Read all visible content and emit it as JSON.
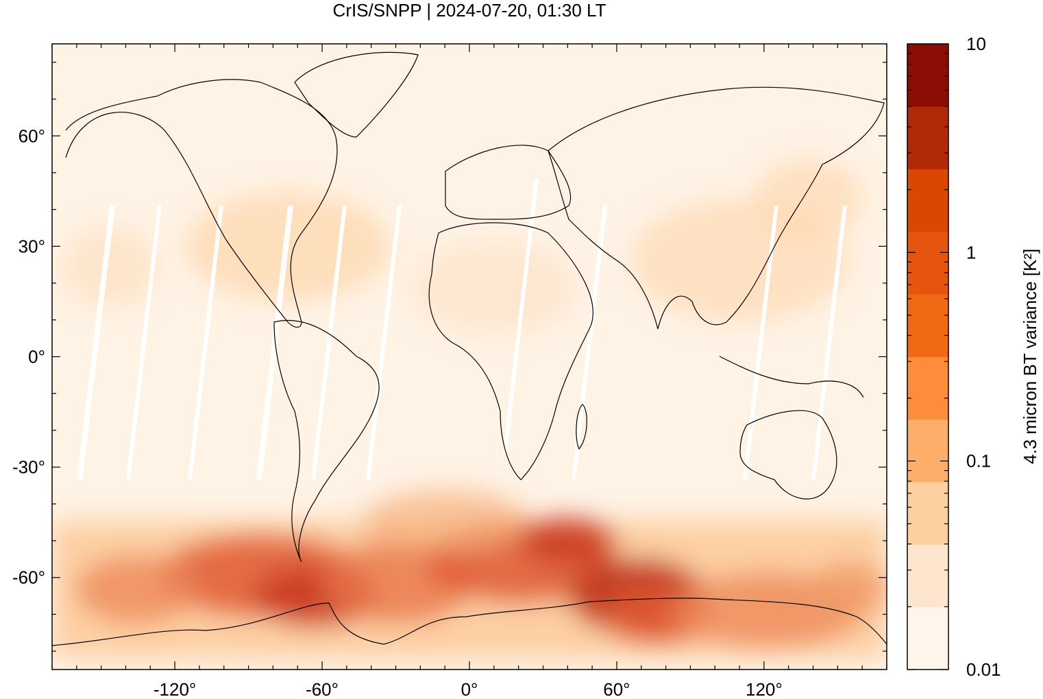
{
  "title": "CrIS/SNPP | 2024-07-20, 01:30 LT",
  "map": {
    "x_ticks": [
      "-120°",
      "-60°",
      "0°",
      "60°",
      "120°"
    ],
    "y_ticks": [
      "60°",
      "30°",
      "0°",
      "-30°",
      "-60°"
    ],
    "x_tick_values": [
      -120,
      -60,
      0,
      60,
      120
    ],
    "y_tick_values": [
      60,
      30,
      0,
      -30,
      -60
    ],
    "lon_range": [
      -170,
      170
    ],
    "lat_range": [
      -85,
      85
    ]
  },
  "colorbar": {
    "label": "4.3 micron BT variance [K²]",
    "tick_labels": [
      "10",
      "1",
      "0.1",
      "0.01"
    ],
    "tick_values": [
      10,
      1,
      0.1,
      0.01
    ],
    "scale": "log",
    "colors": [
      "#fff5eb",
      "#fee6ce",
      "#fdd0a2",
      "#fdae6b",
      "#fd8d3c",
      "#f16913",
      "#e6550d",
      "#d94801",
      "#b12a07",
      "#8c0d04"
    ]
  }
}
